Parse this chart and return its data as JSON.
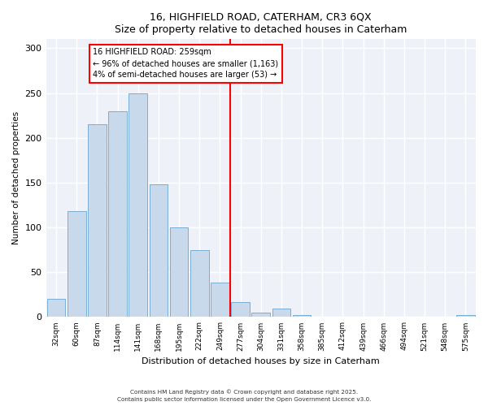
{
  "title1": "16, HIGHFIELD ROAD, CATERHAM, CR3 6QX",
  "title2": "Size of property relative to detached houses in Caterham",
  "xlabel": "Distribution of detached houses by size in Caterham",
  "ylabel": "Number of detached properties",
  "bar_labels": [
    "32sqm",
    "60sqm",
    "87sqm",
    "114sqm",
    "141sqm",
    "168sqm",
    "195sqm",
    "222sqm",
    "249sqm",
    "277sqm",
    "304sqm",
    "331sqm",
    "358sqm",
    "385sqm",
    "412sqm",
    "439sqm",
    "466sqm",
    "494sqm",
    "521sqm",
    "548sqm",
    "575sqm"
  ],
  "bar_values": [
    20,
    118,
    215,
    230,
    250,
    148,
    100,
    75,
    38,
    17,
    5,
    9,
    2,
    0,
    0,
    0,
    0,
    0,
    0,
    0,
    2
  ],
  "bar_color": "#c8d9ec",
  "bar_edge_color": "#7aaed6",
  "ylim": [
    0,
    310
  ],
  "yticks": [
    0,
    50,
    100,
    150,
    200,
    250,
    300
  ],
  "annotation_title": "16 HIGHFIELD ROAD: 259sqm",
  "annotation_line1": "← 96% of detached houses are smaller (1,163)",
  "annotation_line2": "4% of semi-detached houses are larger (53) →",
  "footer1": "Contains HM Land Registry data © Crown copyright and database right 2025.",
  "footer2": "Contains public sector information licensed under the Open Government Licence v3.0.",
  "plot_bg_color": "#eef2f8"
}
